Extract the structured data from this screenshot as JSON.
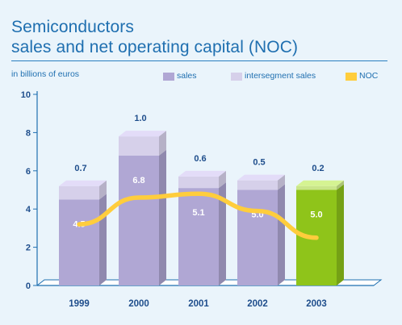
{
  "title_lines": [
    "Semiconductors",
    "sales and net operating capital (NOC)"
  ],
  "unit_label": "in billions of euros",
  "colors": {
    "sales": "#b0a7d4",
    "intersegment": "#d6d0ea",
    "highlight_sales": "#8fc41a",
    "highlight_intersegment": "#c9e58a",
    "noc": "#ffcd3c",
    "axis": "#1f6fb0",
    "text": "#1f4e8c"
  },
  "legend": [
    {
      "label": "sales",
      "color_key": "sales"
    },
    {
      "label": "intersegment sales",
      "color_key": "intersegment"
    },
    {
      "label": "NOC",
      "color_key": "noc"
    }
  ],
  "chart_data": {
    "type": "bar",
    "stacked": true,
    "categories": [
      "1999",
      "2000",
      "2001",
      "2002",
      "2003"
    ],
    "highlight_category": "2003",
    "series": [
      {
        "name": "sales",
        "values": [
          4.5,
          6.8,
          5.1,
          5.0,
          5.0
        ],
        "labels": [
          "4.5",
          "6.8",
          "5.1",
          "5.0",
          "5.0"
        ]
      },
      {
        "name": "intersegment sales",
        "values": [
          0.7,
          1.0,
          0.6,
          0.5,
          0.2
        ],
        "labels": [
          "0.7",
          "1.0",
          "0.6",
          "0.5",
          "0.2"
        ]
      },
      {
        "name": "NOC",
        "type": "line",
        "values": [
          3.2,
          4.6,
          4.8,
          3.9,
          2.5
        ]
      }
    ],
    "y_ticks": [
      "0",
      "2",
      "4",
      "6",
      "8",
      "10"
    ],
    "ylim": [
      0,
      10
    ],
    "legend_position": "top-right",
    "grid": false
  }
}
